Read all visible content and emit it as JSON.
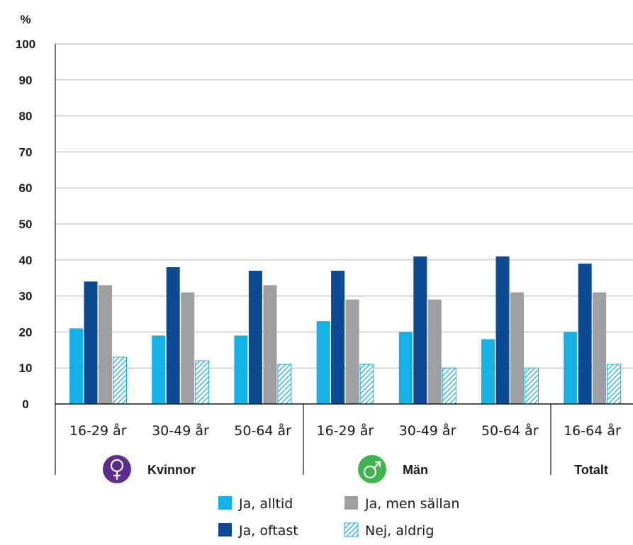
{
  "chart_data": {
    "type": "bar",
    "ylabel": "%",
    "ylim": [
      0,
      100
    ],
    "yticks": [
      0,
      10,
      20,
      30,
      40,
      50,
      60,
      70,
      80,
      90,
      100
    ],
    "grid": true,
    "legend_position": "bottom",
    "categories": [
      "16-29 år",
      "30-49 år",
      "50-64 år",
      "16-29 år",
      "30-49 år",
      "50-64 år",
      "16-64 år"
    ],
    "groups": [
      {
        "label": "Kvinnor",
        "icon": "female-symbol-icon",
        "color": "#5b2d8e",
        "categories": [
          0,
          1,
          2
        ]
      },
      {
        "label": "Män",
        "icon": "male-symbol-icon",
        "color": "#3cb54a",
        "categories": [
          3,
          4,
          5
        ]
      },
      {
        "label": "Totalt",
        "categories": [
          6
        ]
      }
    ],
    "series": [
      {
        "name": "Ja, alltid",
        "color": "#14b1e7",
        "pattern": "solid",
        "values": [
          21,
          19,
          19,
          23,
          20,
          18,
          20
        ]
      },
      {
        "name": "Ja, oftast",
        "color": "#0c4a93",
        "pattern": "solid",
        "values": [
          34,
          38,
          37,
          37,
          41,
          41,
          39
        ]
      },
      {
        "name": "Ja, men sällan",
        "color": "#9d9fa2",
        "pattern": "solid",
        "values": [
          33,
          31,
          33,
          29,
          29,
          31,
          31
        ]
      },
      {
        "name": "Nej, aldrig",
        "color": "#14b1e7",
        "pattern": "hatched",
        "values": [
          13,
          12,
          11,
          11,
          10,
          10,
          11
        ]
      }
    ]
  }
}
